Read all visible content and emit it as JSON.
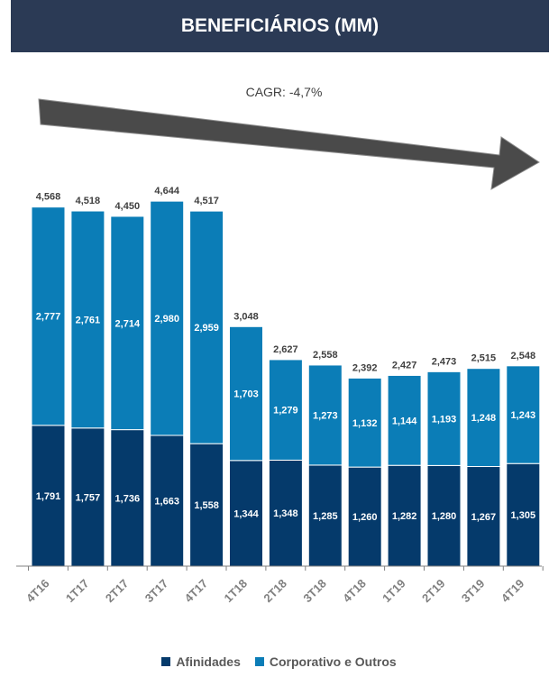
{
  "header": {
    "title": "BENEFICIÁRIOS (MM)"
  },
  "colors": {
    "header_bg": "#2b3a55",
    "afinidades": "#053a6b",
    "corporativo": "#0b7db7",
    "arrow": "#4a4a4a"
  },
  "chart_data": {
    "type": "bar",
    "stacked": true,
    "categories": [
      "4T16",
      "1T17",
      "2T17",
      "3T17",
      "4T17",
      "1T18",
      "2T18",
      "3T18",
      "4T18",
      "1T19",
      "2T19",
      "3T19",
      "4T19"
    ],
    "series": [
      {
        "name": "Afinidades",
        "values": [
          "1,791",
          "1,757",
          "1,736",
          "1,663",
          "1,558",
          "1,344",
          "1,348",
          "1,285",
          "1,260",
          "1,282",
          "1,280",
          "1,267",
          "1,305"
        ]
      },
      {
        "name": "Corporativo e Outros",
        "values": [
          "2,777",
          "2,761",
          "2,714",
          "2,980",
          "2,959",
          "1,703",
          "1,279",
          "1,273",
          "1,132",
          "1,144",
          "1,193",
          "1,248",
          "1,243"
        ]
      }
    ],
    "totals": [
      "4,568",
      "4,518",
      "4,450",
      "4,644",
      "4,517",
      "3,048",
      "2,627",
      "2,558",
      "2,392",
      "2,427",
      "2,473",
      "2,515",
      "2,548"
    ],
    "annotation": "CAGR: -4,7%",
    "legend_position": "bottom",
    "grid": false
  }
}
